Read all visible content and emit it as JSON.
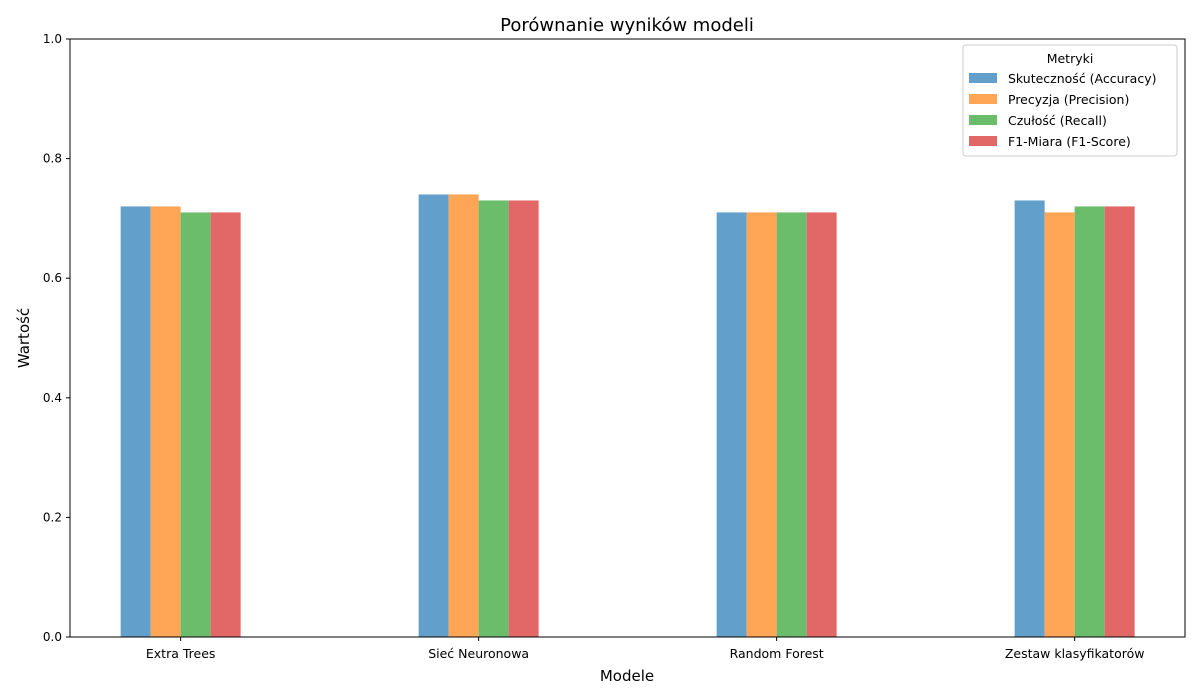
{
  "chart_data": {
    "type": "bar",
    "title": "Porównanie wyników modeli",
    "xlabel": "Modele",
    "ylabel": "Wartość",
    "categories": [
      "Extra Trees",
      "Sieć Neuronowa",
      "Random Forest",
      "Zestaw klasyfikatorów"
    ],
    "ylim": [
      0,
      1.0
    ],
    "yticks": [
      "0.0",
      "0.2",
      "0.4",
      "0.6",
      "0.8",
      "1.0"
    ],
    "grid": false,
    "legend": {
      "title": "Metryki",
      "position": "top-right"
    },
    "series": [
      {
        "name": "Skuteczność (Accuracy)",
        "color": "#629fca",
        "values": [
          0.72,
          0.74,
          0.71,
          0.73
        ]
      },
      {
        "name": "Precyzja (Precision)",
        "color": "#ffa556",
        "values": [
          0.72,
          0.74,
          0.71,
          0.71
        ]
      },
      {
        "name": "Czułość (Recall)",
        "color": "#6bbc6b",
        "values": [
          0.71,
          0.73,
          0.71,
          0.72
        ]
      },
      {
        "name": "F1-Miara (F1-Score)",
        "color": "#e26868",
        "values": [
          0.71,
          0.73,
          0.71,
          0.72
        ]
      }
    ]
  }
}
